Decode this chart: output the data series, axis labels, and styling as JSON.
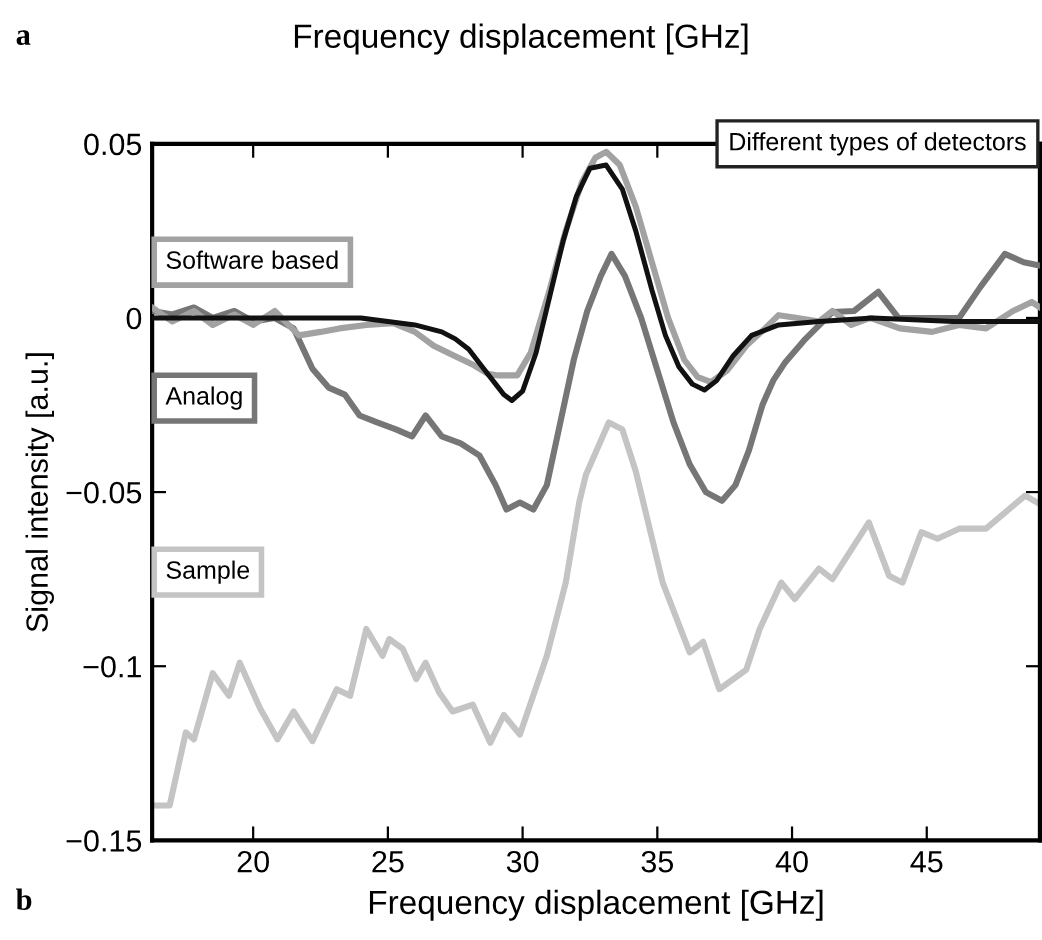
{
  "chart_data": {
    "type": "line",
    "title": "Frequency displacement [GHz]",
    "xlabel": "Frequency displacement [GHz]",
    "ylabel": "Signal intensity [a.u.]",
    "annotations": [
      "a",
      "b",
      "Different types of detectors"
    ],
    "xlim": [
      16.25,
      49.2
    ],
    "ylim": [
      -0.15,
      0.05
    ],
    "xticks": [
      20,
      25,
      30,
      35,
      40,
      45
    ],
    "yticks": [
      {
        "value": 0.05,
        "label": "0.05"
      },
      {
        "value": 0,
        "label": "0"
      },
      {
        "value": -0.05,
        "label": "−0.05"
      },
      {
        "value": -0.1,
        "label": "−0.1"
      },
      {
        "value": -0.15,
        "label": "−0.15"
      }
    ],
    "grid": false,
    "legend": false,
    "marker": "none",
    "line_style": "solid",
    "series": [
      {
        "name": "Sample",
        "color": "#c4c4c4",
        "x": [
          16.3,
          16.9,
          17.5,
          17.8,
          18.5,
          19.1,
          19.5,
          20.25,
          20.9,
          21.5,
          22.2,
          23.1,
          23.6,
          24.2,
          24.8,
          25.05,
          25.55,
          26.05,
          26.4,
          26.9,
          27.4,
          28.15,
          28.8,
          29.3,
          29.9,
          30.9,
          31.6,
          32.1,
          32.35,
          33.2,
          33.7,
          34.2,
          35.2,
          36.2,
          36.7,
          37.3,
          38.3,
          38.8,
          39.6,
          40.1,
          41.0,
          41.5,
          42.85,
          43.6,
          44.1,
          44.8,
          45.4,
          46.2,
          47.2,
          48.65,
          49.1
        ],
        "values": [
          -0.14,
          -0.14,
          -0.119,
          -0.121,
          -0.102,
          -0.1085,
          -0.099,
          -0.112,
          -0.121,
          -0.113,
          -0.1215,
          -0.1066,
          -0.1085,
          -0.0893,
          -0.097,
          -0.0922,
          -0.095,
          -0.1037,
          -0.099,
          -0.1075,
          -0.113,
          -0.111,
          -0.122,
          -0.114,
          -0.1196,
          -0.097,
          -0.076,
          -0.053,
          -0.045,
          -0.03,
          -0.032,
          -0.044,
          -0.076,
          -0.096,
          -0.093,
          -0.1066,
          -0.101,
          -0.0893,
          -0.076,
          -0.0807,
          -0.072,
          -0.075,
          -0.0587,
          -0.074,
          -0.076,
          -0.0615,
          -0.0634,
          -0.0605,
          -0.0605,
          -0.051,
          -0.053
        ]
      },
      {
        "name": "Analog",
        "color": "#767676",
        "x": [
          16.25,
          17,
          17.8,
          18.5,
          19.3,
          20,
          20.8,
          21.5,
          22.2,
          22.8,
          23.4,
          23.95,
          24.6,
          25.3,
          25.9,
          26.4,
          27,
          27.7,
          28.4,
          29,
          29.4,
          29.9,
          30.4,
          30.9,
          31.4,
          31.9,
          32.4,
          32.9,
          33.3,
          33.8,
          34.4,
          35,
          35.6,
          36.2,
          36.8,
          37.4,
          37.9,
          38.4,
          38.9,
          39.3,
          39.75,
          40.5,
          41.5,
          42.3,
          43.2,
          43.95,
          45,
          46.2,
          47,
          47.9,
          48.6,
          49.2
        ],
        "values": [
          0.002,
          0.001,
          0.003,
          0.0,
          0.002,
          -0.001,
          0.0,
          -0.003,
          -0.0146,
          -0.02,
          -0.022,
          -0.028,
          -0.03,
          -0.032,
          -0.034,
          -0.028,
          -0.034,
          -0.036,
          -0.0395,
          -0.048,
          -0.055,
          -0.053,
          -0.055,
          -0.048,
          -0.03,
          -0.012,
          0.002,
          0.012,
          0.0184,
          0.012,
          0.0,
          -0.015,
          -0.03,
          -0.042,
          -0.05,
          -0.0525,
          -0.048,
          -0.038,
          -0.025,
          -0.018,
          -0.0127,
          -0.006,
          0.0017,
          0.002,
          0.0075,
          0.0,
          0.0,
          0.0,
          0.009,
          0.0184,
          0.016,
          0.015
        ]
      },
      {
        "name": "Software based",
        "color": "#a2a2a2",
        "x": [
          16.25,
          17,
          17.8,
          18.5,
          19.3,
          20,
          20.8,
          21.7,
          22.5,
          23.2,
          24.2,
          25.2,
          26,
          26.7,
          27.5,
          28.2,
          28.7,
          29.1,
          29.8,
          30.3,
          31,
          31.6,
          32.2,
          32.7,
          33.1,
          33.6,
          34.2,
          34.8,
          35.4,
          36,
          36.5,
          37,
          37.6,
          38.3,
          39,
          39.5,
          40.2,
          41,
          41.5,
          42.2,
          42.9,
          44,
          45.2,
          46.2,
          47.2,
          48.2,
          48.9,
          49.2
        ],
        "values": [
          0.003,
          -0.001,
          0.002,
          -0.002,
          0.001,
          -0.002,
          0.002,
          -0.005,
          -0.004,
          -0.003,
          -0.002,
          -0.0015,
          -0.004,
          -0.008,
          -0.011,
          -0.0136,
          -0.016,
          -0.0165,
          -0.0165,
          -0.01,
          0.008,
          0.025,
          0.039,
          0.046,
          0.0477,
          0.044,
          0.032,
          0.016,
          0.0,
          -0.012,
          -0.017,
          -0.0184,
          -0.015,
          -0.008,
          -0.003,
          0.0008,
          0.0,
          -0.001,
          0.002,
          -0.002,
          0.0,
          -0.003,
          -0.004,
          -0.002,
          -0.003,
          0.002,
          0.0046,
          0.003
        ]
      },
      {
        "color": "#111111",
        "x": [
          16.25,
          18,
          20,
          22,
          24,
          25,
          26,
          27,
          27.5,
          28,
          28.5,
          29,
          29.3,
          29.6,
          30,
          30.5,
          31,
          31.5,
          32,
          32.5,
          33.1,
          33.7,
          34.2,
          34.8,
          35.3,
          35.8,
          36.3,
          36.75,
          37.2,
          37.8,
          38.5,
          39.5,
          41,
          43,
          46,
          49.2
        ],
        "values": [
          0.0,
          0.0,
          0.0,
          0.0,
          0.0,
          -0.001,
          -0.002,
          -0.004,
          -0.006,
          -0.009,
          -0.014,
          -0.019,
          -0.022,
          -0.0237,
          -0.021,
          -0.01,
          0.006,
          0.022,
          0.035,
          0.043,
          0.0439,
          0.037,
          0.025,
          0.008,
          -0.005,
          -0.014,
          -0.019,
          -0.0207,
          -0.018,
          -0.011,
          -0.005,
          -0.002,
          -0.001,
          0.0,
          -0.001,
          -0.001
        ]
      }
    ]
  }
}
